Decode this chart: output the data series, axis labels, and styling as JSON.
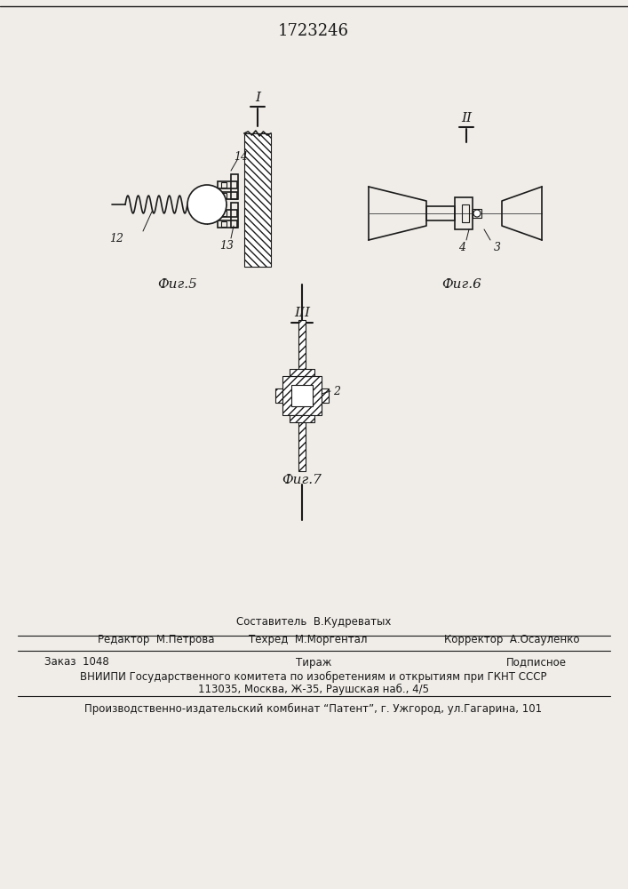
{
  "title": "1723246",
  "bg_color": "#f0ede8",
  "line_color": "#1a1a1a",
  "hatch_color": "#1a1a1a",
  "fig5_label": "Фиг.5",
  "fig6_label": "Фиг.6",
  "fig7_label": "Фиг.7",
  "section_I": "I",
  "section_II": "II",
  "section_III": "III",
  "label_12": "12",
  "label_13": "13",
  "label_14": "14",
  "label_2": "2",
  "label_3": "3",
  "label_4": "4",
  "footer_line1_left": "Редактор  М.Петрова",
  "footer_line1_center": "Составитель  В.Кудреватых",
  "footer_line1_right": "Корректор  А.Осауленко",
  "footer_line2_center": "Техред  М.Моргентал",
  "footer_line3_left": "Заказ  1048",
  "footer_line3_center": "Тираж",
  "footer_line3_right": "Подписное",
  "footer_line4": "ВНИИПИ Государственного комитета по изобретениям и открытиям при ГКНТ СССР",
  "footer_line5": "113035, Москва, Ж-35, Раушская наб., 4/5",
  "footer_last": "Производственно-издательский комбинат “Патент”, г. Ужгород, ул.Гагарина, 101"
}
